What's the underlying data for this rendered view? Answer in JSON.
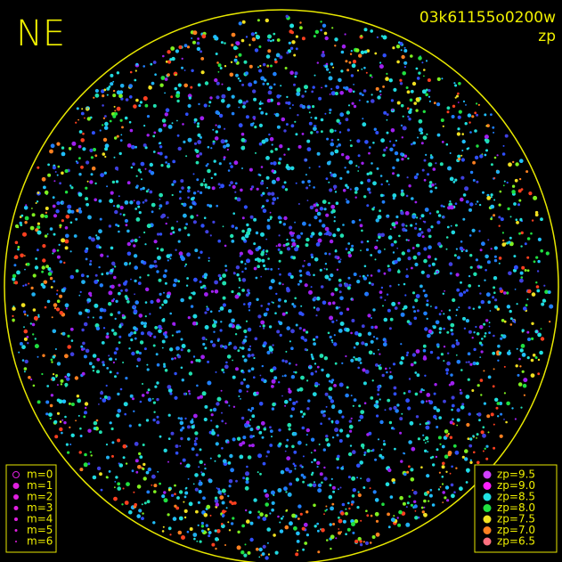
{
  "header": {
    "direction": "NE",
    "frame_id": "03k61155o0200w",
    "mode": "zp"
  },
  "legend_m": {
    "labels": [
      "m=0",
      "m=1",
      "m=2",
      "m=3",
      "m=4",
      "m=5",
      "m=6"
    ],
    "color": "#e020e0"
  },
  "legend_zp": {
    "items": [
      {
        "label": "zp=9.5",
        "color": "#d040ff"
      },
      {
        "label": "zp=9.0",
        "color": "#ff20ff"
      },
      {
        "label": "zp=8.5",
        "color": "#20e0e0"
      },
      {
        "label": "zp=8.0",
        "color": "#20e040"
      },
      {
        "label": "zp=7.5",
        "color": "#f0e020"
      },
      {
        "label": "zp=7.0",
        "color": "#ff8020"
      },
      {
        "label": "zp=6.5",
        "color": "#ff7080"
      }
    ]
  }
}
